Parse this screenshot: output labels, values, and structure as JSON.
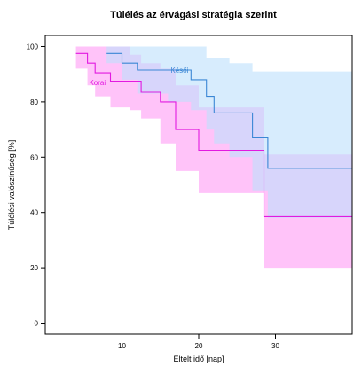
{
  "chart_data": {
    "type": "line",
    "title": "Túlélés az érvágási stratégia szerint",
    "xlabel": "Eltelt idő [nap]",
    "ylabel": "Túlélési valószínűség [%]",
    "xlim": [
      0,
      40
    ],
    "ylim": [
      -4,
      104
    ],
    "x_ticks": [
      10,
      20,
      30
    ],
    "y_ticks": [
      0,
      20,
      40,
      60,
      80,
      100
    ],
    "x_tick_labels": [
      "10",
      "20",
      "30"
    ],
    "y_tick_labels": [
      "0",
      "20",
      "40",
      "60",
      "80",
      "100"
    ],
    "grid": false,
    "series": [
      {
        "name": "Korai",
        "color": "#e21ae0",
        "band_color": "#ff9ef5",
        "x": [
          4,
          5.5,
          6.5,
          8.5,
          11,
          12.5,
          15,
          17,
          20,
          28.5,
          40
        ],
        "y": [
          97.5,
          94,
          90.5,
          87.5,
          87.5,
          83.5,
          80,
          70,
          62.5,
          38.5,
          38.5
        ],
        "upper": [
          100,
          100,
          100,
          100,
          97,
          94,
          92,
          86,
          78,
          61,
          61
        ],
        "lower": [
          92,
          86,
          82,
          78,
          77,
          74,
          65,
          55,
          47,
          20,
          20
        ]
      },
      {
        "name": "Késői",
        "color": "#3b87d5",
        "band_color": "#bfe0fb",
        "x": [
          8,
          10,
          12,
          16,
          19,
          21,
          22,
          24,
          27,
          29,
          40
        ],
        "y": [
          97.5,
          94,
          91.5,
          91.5,
          88,
          82,
          76,
          76,
          67,
          56,
          56
        ],
        "upper": [
          100,
          100,
          100,
          100,
          100,
          96,
          96,
          94,
          91,
          91,
          91
        ],
        "lower": [
          94,
          88,
          83,
          80,
          77,
          70,
          65,
          60,
          48,
          38,
          38
        ]
      }
    ],
    "annotations": [
      {
        "text": "Korai",
        "x": 6.8,
        "y": 86
      },
      {
        "text": "Késői",
        "x": 17.5,
        "y": 90.5
      }
    ]
  }
}
